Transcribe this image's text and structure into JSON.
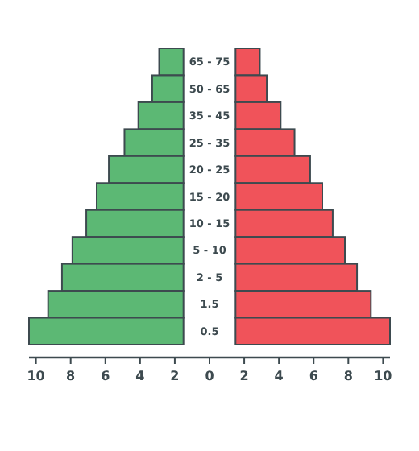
{
  "chart_data": {
    "type": "bar",
    "orientation": "horizontal",
    "categories": [
      "65 - 75",
      "50 - 65",
      "35 - 45",
      "25 - 35",
      "20 - 25",
      "15 - 20",
      "10 - 15",
      "5 - 10",
      "2 - 5",
      "1.5",
      "0.5"
    ],
    "series": [
      {
        "color": "#5cb874",
        "base": [
          -1.5,
          -1.5,
          -1.5,
          -1.5,
          -1.5,
          -1.5,
          -1.5,
          -1.5,
          -1.5,
          -1.5,
          -1.5
        ],
        "values": [
          -1.4,
          -1.8,
          -2.6,
          -3.4,
          -4.3,
          -5,
          -5.6,
          -6.4,
          -7,
          -7.8,
          -8.9
        ]
      },
      {
        "color": "#f0535a",
        "base": [
          1.5,
          1.5,
          1.5,
          1.5,
          1.5,
          1.5,
          1.5,
          1.5,
          1.5,
          1.5,
          1.5
        ],
        "values": [
          1.4,
          1.8,
          2.6,
          3.4,
          4.3,
          5,
          5.6,
          6.3,
          7,
          7.8,
          8.9
        ]
      }
    ],
    "xlim": [
      -10.4,
      10.4
    ],
    "xticks": [
      {
        "value": -10,
        "label": "10"
      },
      {
        "value": -8,
        "label": "8"
      },
      {
        "value": -6,
        "label": "6"
      },
      {
        "value": -4,
        "label": "4"
      },
      {
        "value": -2,
        "label": "2"
      },
      0,
      2,
      4,
      6,
      8,
      10
    ],
    "grid": false
  }
}
